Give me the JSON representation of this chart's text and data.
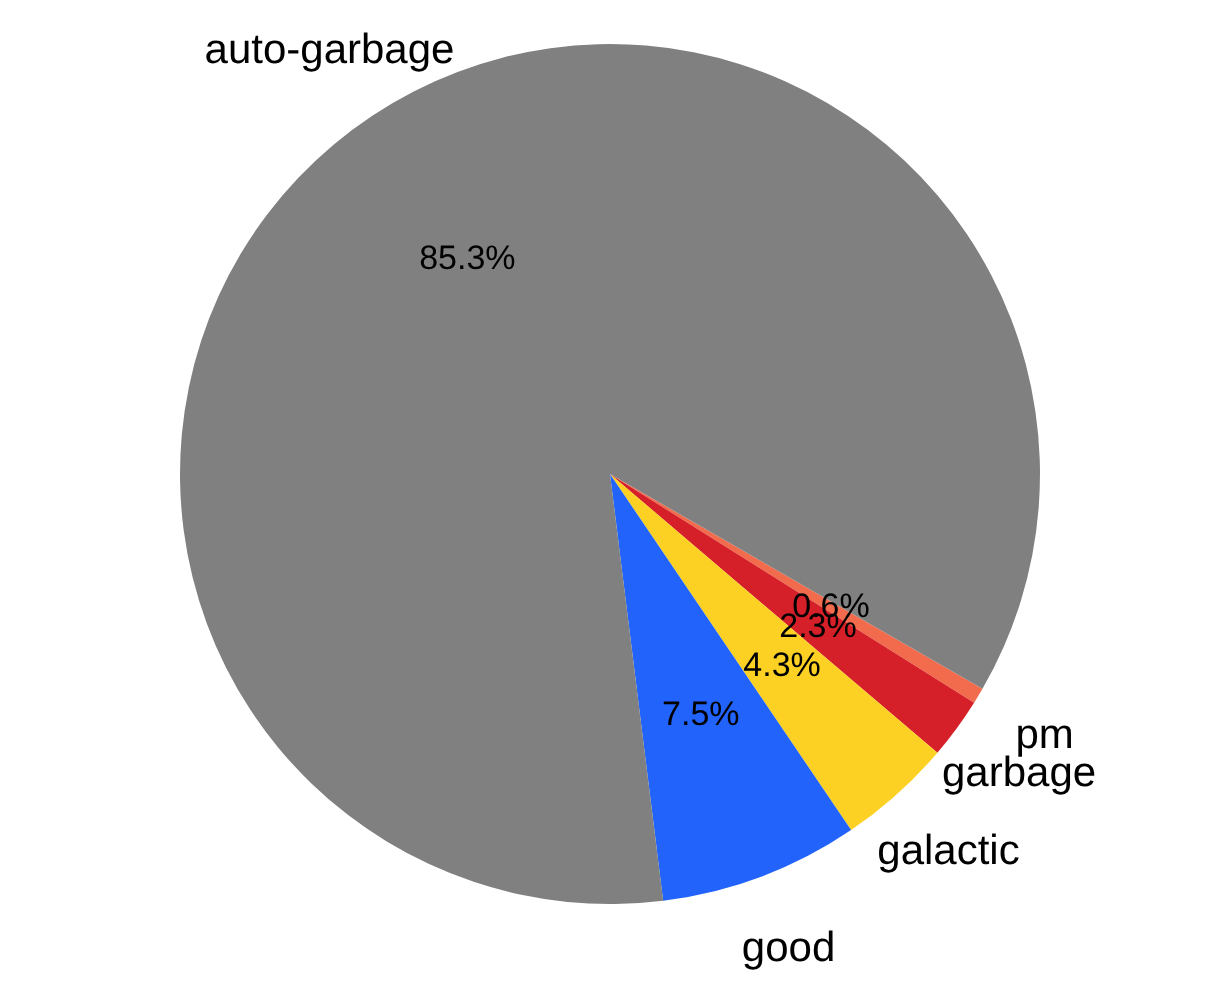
{
  "chart_data": {
    "type": "pie",
    "categories": [
      "pm",
      "garbage",
      "galactic",
      "good",
      "auto-garbage"
    ],
    "values": [
      0.6,
      2.3,
      4.3,
      7.5,
      85.3
    ],
    "colors": [
      "#f26b4c",
      "#d62029",
      "#fcd123",
      "#2163fb",
      "#808080"
    ],
    "value_labels": [
      "0.6%",
      "2.3%",
      "4.3%",
      "7.5%",
      "85.3%"
    ]
  }
}
